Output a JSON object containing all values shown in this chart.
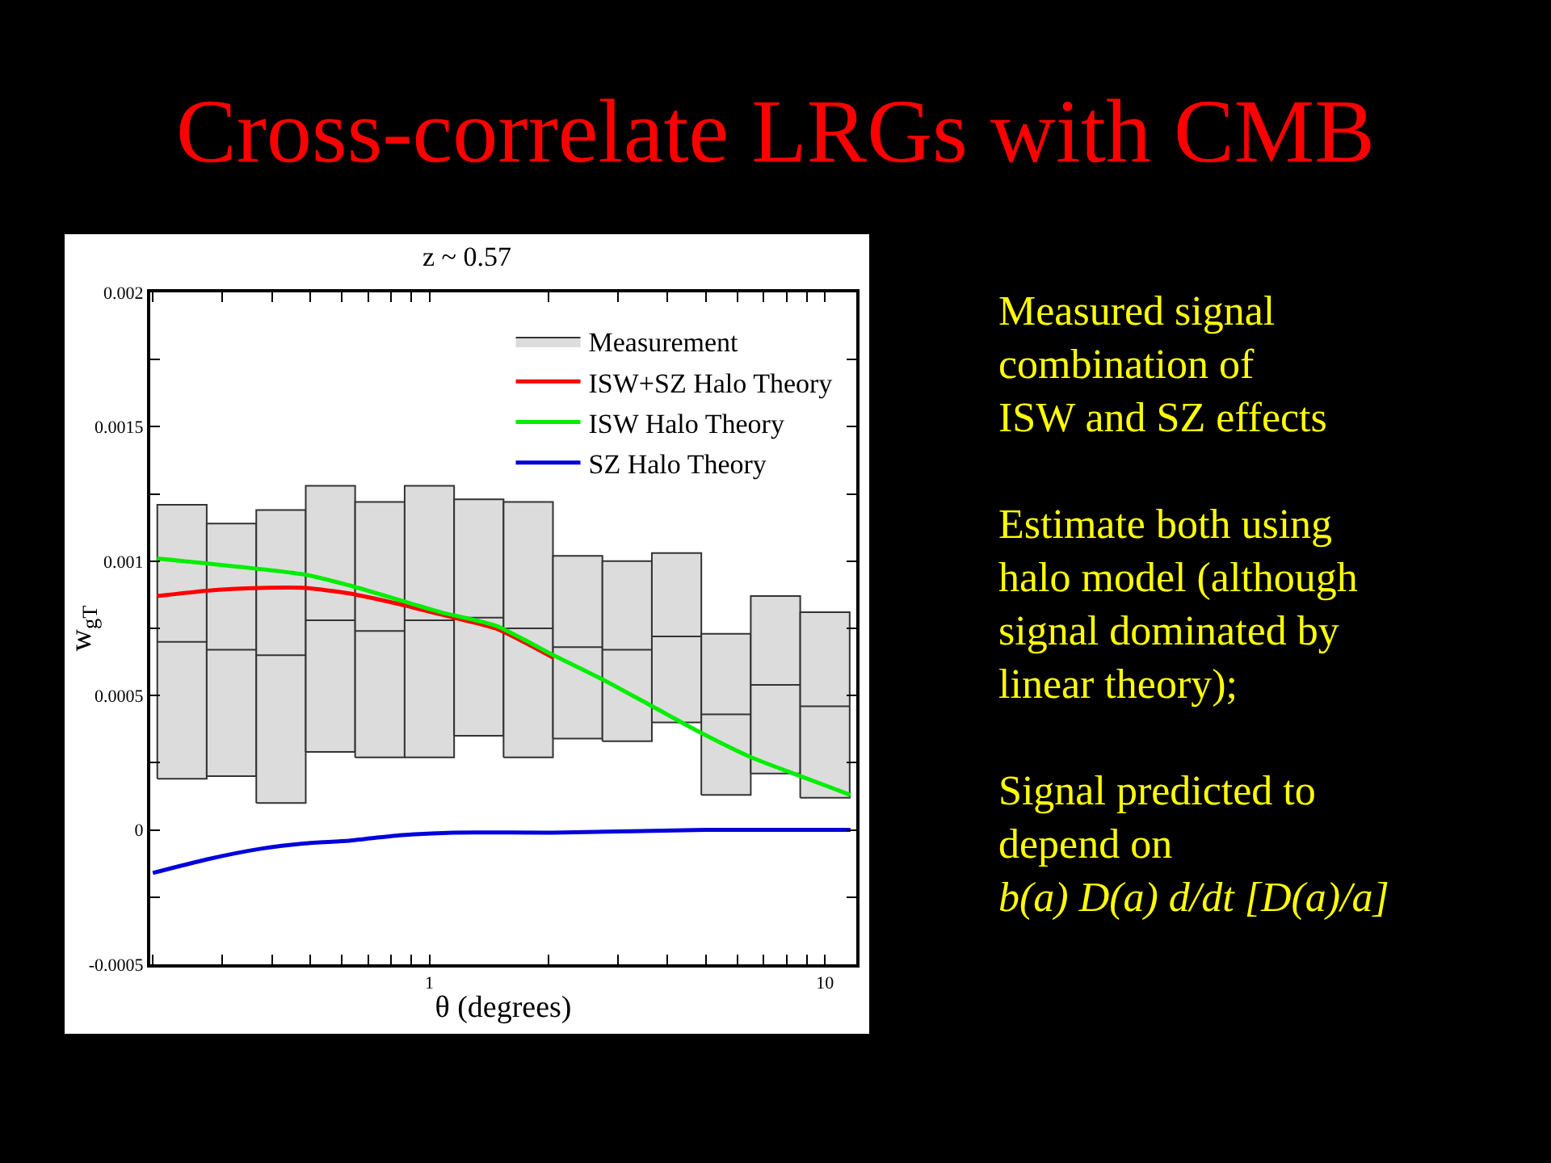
{
  "chart_data": {
    "type": "line",
    "title": "Cross-correlate LRGs with CMB",
    "subtitle": "z ~ 0.57",
    "xlabel": "θ (degrees)",
    "ylabel": "w$_{gT}$",
    "log": "x",
    "grid": false,
    "legend": "top right",
    "marker": "none",
    "line_style": "solid",
    "xlim": [
      0.197,
      12
    ],
    "xticks": [
      {
        "value": 0.2,
        "label": null
      },
      {
        "value": 0.3,
        "label": null
      },
      {
        "value": 0.4,
        "label": null
      },
      {
        "value": 0.5,
        "label": null
      },
      {
        "value": 0.6,
        "label": null
      },
      {
        "value": 0.7,
        "label": null
      },
      {
        "value": 0.8,
        "label": null
      },
      {
        "value": 0.9,
        "label": null
      },
      1,
      {
        "value": 2,
        "label": null
      },
      {
        "value": 3,
        "label": null
      },
      {
        "value": 4,
        "label": null
      },
      {
        "value": 5,
        "label": null
      },
      {
        "value": 6,
        "label": null
      },
      {
        "value": 7,
        "label": null
      },
      {
        "value": 8,
        "label": null
      },
      {
        "value": 9,
        "label": null
      },
      10
    ],
    "ylim": [
      -0.0005,
      0.002
    ],
    "yticks": [
      {
        "value": -0.0005,
        "label": "-0.0005"
      },
      {
        "value": -0.00025,
        "label": null
      },
      0,
      {
        "value": 0.00025,
        "label": null
      },
      0.0005,
      {
        "value": 0.00075,
        "label": null
      },
      0.001,
      {
        "value": 0.00125,
        "label": null
      },
      0.0015,
      {
        "value": 0.00175,
        "label": null
      },
      0.002
    ],
    "series": [
      {
        "type": "box",
        "name": "Measurement",
        "color": "#dcdcdc",
        "x": [
          0.237,
          0.316,
          0.422,
          0.562,
          0.75,
          1,
          1.334,
          1.778,
          2.371,
          3.162,
          4.217,
          5.623,
          7.499,
          10
        ],
        "boxes": [
          {
            "low": 0.00019,
            "q1": 0.00019,
            "median": 0.0007,
            "q3": 0.00121,
            "high": 0.00121
          },
          {
            "low": 0.0002,
            "q1": 0.0002,
            "median": 0.00067,
            "q3": 0.00114,
            "high": 0.00114
          },
          {
            "low": 0.0001,
            "q1": 0.0001,
            "median": 0.00065,
            "q3": 0.00119,
            "high": 0.00119
          },
          {
            "low": 0.00029,
            "q1": 0.00029,
            "median": 0.00078,
            "q3": 0.00128,
            "high": 0.00128
          },
          {
            "low": 0.00027,
            "q1": 0.00027,
            "median": 0.00074,
            "q3": 0.00122,
            "high": 0.00122
          },
          {
            "low": 0.00027,
            "q1": 0.00027,
            "median": 0.00078,
            "q3": 0.00128,
            "high": 0.00128
          },
          {
            "low": 0.00035,
            "q1": 0.00035,
            "median": 0.00079,
            "q3": 0.00123,
            "high": 0.00123
          },
          {
            "low": 0.00027,
            "q1": 0.00027,
            "median": 0.00075,
            "q3": 0.00122,
            "high": 0.00122
          },
          {
            "low": 0.00034,
            "q1": 0.00034,
            "median": 0.00068,
            "q3": 0.00102,
            "high": 0.00102
          },
          {
            "low": 0.00033,
            "q1": 0.00033,
            "median": 0.00067,
            "q3": 0.001,
            "high": 0.001
          },
          {
            "low": 0.0004,
            "q1": 0.0004,
            "median": 0.00072,
            "q3": 0.00103,
            "high": 0.00103
          },
          {
            "low": 0.00013,
            "q1": 0.00013,
            "median": 0.00043,
            "q3": 0.00073,
            "high": 0.00073
          },
          {
            "low": 0.00021,
            "q1": 0.00021,
            "median": 0.00054,
            "q3": 0.00087,
            "high": 0.00087
          },
          {
            "low": 0.00012,
            "q1": 0.00012,
            "median": 0.00046,
            "q3": 0.00081,
            "high": 0.00081
          }
        ]
      },
      {
        "name": "ISW+SZ Halo Theory",
        "color": "#ff0000",
        "x": [
          0.205,
          0.273,
          0.375,
          0.485,
          0.627,
          0.84,
          1.15,
          1.47,
          2.06
        ],
        "values": [
          0.00087,
          0.00089,
          0.0009,
          0.0009,
          0.00088,
          0.00084,
          0.00079,
          0.00075,
          0.00064
        ]
      },
      {
        "name": "ISW Halo Theory",
        "color": "#00ee00",
        "x": [
          0.205,
          0.485,
          0.627,
          1.07,
          1.47,
          2.06,
          2.74,
          3.66,
          4.88,
          6.51,
          8.68,
          11.6
        ],
        "values": [
          0.00101,
          0.00095,
          0.00091,
          0.00081,
          0.00076,
          0.00065,
          0.00056,
          0.00046,
          0.00036,
          0.00027,
          0.0002,
          0.00013
        ]
      },
      {
        "name": "SZ Halo Theory",
        "color": "#0000dd",
        "x": [
          0.2,
          0.273,
          0.375,
          0.485,
          0.627,
          0.84,
          1.15,
          2.06,
          5,
          11.6
        ],
        "values": [
          -0.00016,
          -0.00011,
          -7e-05,
          -5e-05,
          -4e-05,
          -2e-05,
          -1e-05,
          -1e-05,
          0,
          0
        ]
      }
    ],
    "annotations": [
      "Measured signal\ncombination of\nISW and SZ effects",
      "Estimate both using\nhalo model (although\nsignal dominated by\nlinear theory);",
      "Signal predicted to\ndepend on",
      "b(a) D(a) d/dt [D(a)/a]"
    ]
  }
}
